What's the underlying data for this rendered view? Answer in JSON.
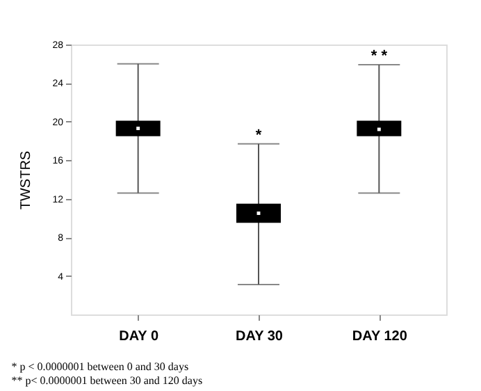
{
  "chart_data": {
    "type": "box",
    "ylabel": "TWSTRS",
    "categories": [
      "DAY 0",
      "DAY 30",
      "DAY 120"
    ],
    "boxes": [
      {
        "low": 12.6,
        "q1": 18.5,
        "median": 19.3,
        "q3": 20.1,
        "high": 26.0
      },
      {
        "low": 3.1,
        "q1": 9.5,
        "median": 10.5,
        "q3": 11.5,
        "high": 17.7
      },
      {
        "low": 12.6,
        "q1": 18.5,
        "median": 19.2,
        "q3": 20.1,
        "high": 25.9
      }
    ],
    "color": "#000000",
    "ylim": [
      0,
      28
    ],
    "yticks": [
      4,
      8,
      12,
      16,
      20,
      24,
      28
    ],
    "grid": false,
    "annotations": [
      {
        "text": "*",
        "x": "DAY 30",
        "y": 17.7
      },
      {
        "text": "* *",
        "x": "DAY 120",
        "y": 25.9
      },
      "* p < 0.0000001 between 0 and 30 days",
      "** p< 0.0000001 between 30 and 120 days"
    ]
  }
}
